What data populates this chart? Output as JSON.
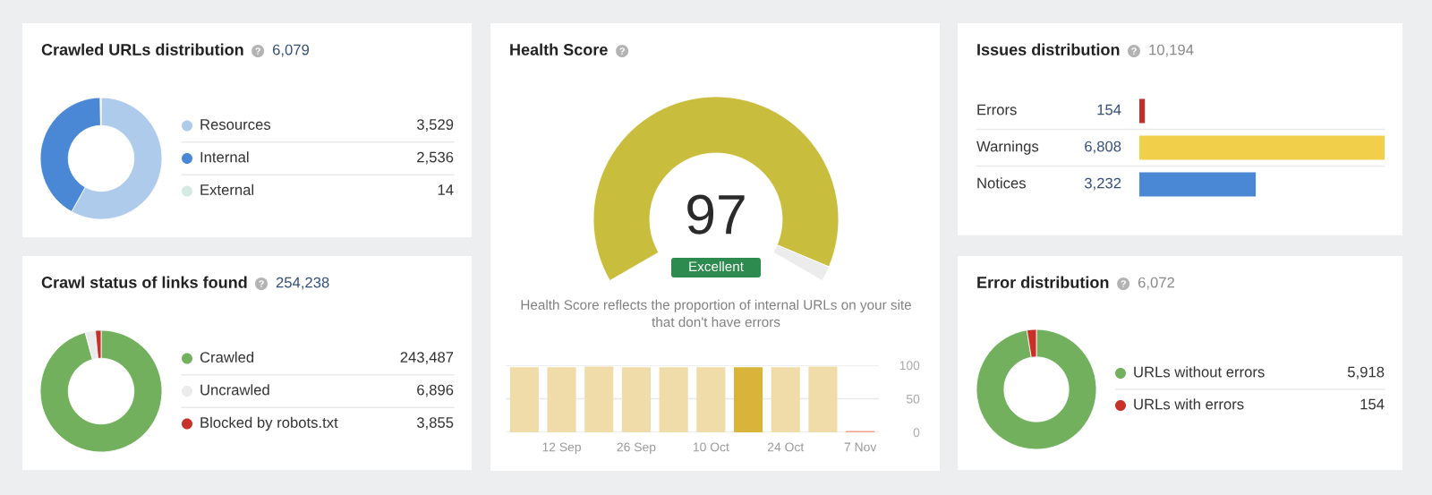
{
  "chart_data": [
    {
      "type": "donut",
      "title": "Crawled URLs distribution",
      "subtitle": "6,079",
      "categories": [
        "Resources",
        "Internal",
        "External"
      ],
      "values": [
        3529,
        2536,
        14
      ],
      "colors": [
        "#aecbeb",
        "#4a88d6",
        "#d4ebe2"
      ],
      "value_labels": [
        "3,529",
        "2,536",
        "14"
      ],
      "legend": "right"
    },
    {
      "type": "donut",
      "title": "Health Score",
      "categories": [
        null,
        null
      ],
      "values": [
        97,
        3
      ],
      "colors": [
        "#c9bd3e",
        "#ececec"
      ],
      "value_labels": [
        "97",
        null
      ],
      "annotations": [
        "Excellent",
        "Health Score reflects the proportion of internal URLs on your site that don't have errors"
      ]
    },
    {
      "type": "bar",
      "categories": [
        null,
        "12 Sep",
        null,
        "26 Sep",
        null,
        "10 Oct",
        null,
        "24 Oct",
        null,
        "7 Nov"
      ],
      "values": [
        97,
        97,
        98,
        97,
        97,
        97,
        97,
        97,
        98,
        2
      ],
      "colors": [
        "#f0dca8",
        "#f0dca8",
        "#f0dca8",
        "#f0dca8",
        "#f0dca8",
        "#f0dca8",
        "#d8b43a",
        "#f0dca8",
        "#f0dca8",
        "#ee9f86"
      ],
      "ylim": [
        0,
        100
      ],
      "yticks": [
        0,
        50,
        100
      ],
      "grid": "y"
    },
    {
      "type": "bar",
      "orientation": "horizontal",
      "title": "Issues distribution",
      "subtitle": "10,194",
      "categories": [
        "Errors",
        "Warnings",
        "Notices"
      ],
      "values": [
        154,
        6808,
        3232
      ],
      "colors": [
        "#c0302a",
        "#f2cf4a",
        "#4a88d6"
      ],
      "value_labels": [
        "154",
        "6,808",
        "3,232"
      ]
    },
    {
      "type": "donut",
      "title": "Crawl status of links found",
      "subtitle": "254,238",
      "categories": [
        "Crawled",
        "Uncrawled",
        "Blocked by robots.txt"
      ],
      "values": [
        243487,
        6896,
        3855
      ],
      "colors": [
        "#72b05e",
        "#ebebeb",
        "#c8302a"
      ],
      "value_labels": [
        "243,487",
        "6,896",
        "3,855"
      ],
      "legend": "right"
    },
    {
      "type": "donut",
      "title": "Error distribution",
      "subtitle": "6,072",
      "categories": [
        "URLs without errors",
        "URLs with errors"
      ],
      "values": [
        5918,
        154
      ],
      "colors": [
        "#72b05e",
        "#c8302a"
      ],
      "value_labels": [
        "5,918",
        "154"
      ],
      "legend": "right"
    }
  ]
}
